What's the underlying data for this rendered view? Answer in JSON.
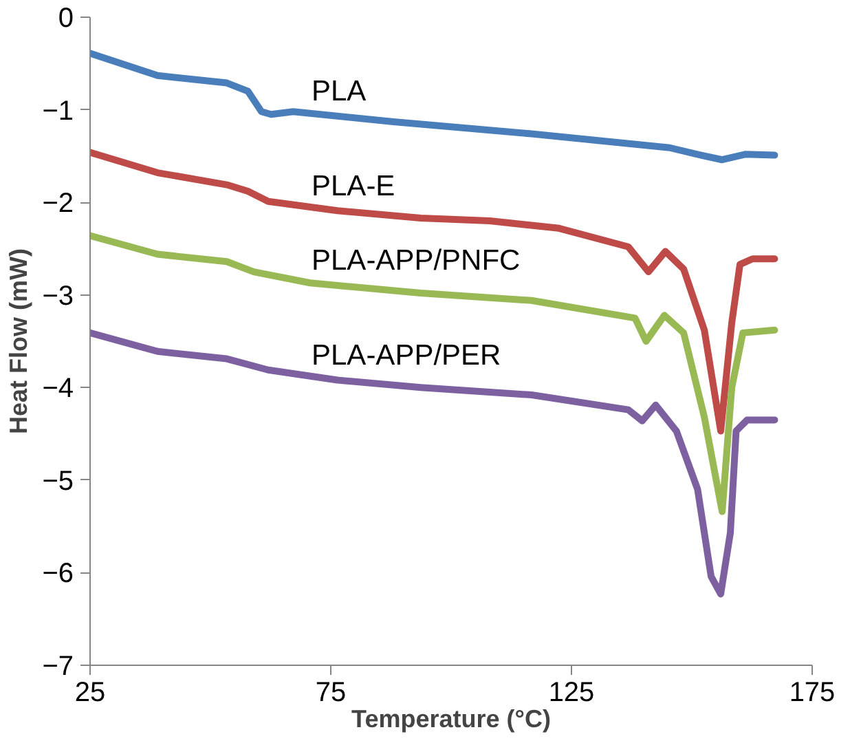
{
  "chart_data": {
    "type": "line",
    "xlabel": "Temperature (°C)",
    "ylabel": "Heat Flow (mW)",
    "xlim": [
      25,
      175
    ],
    "xticks": [
      25,
      75,
      125,
      175
    ],
    "ylim": [
      -7,
      0
    ],
    "yticks": [
      -7,
      -6,
      -5,
      -4,
      -3,
      -2,
      -1,
      0
    ],
    "grid": false,
    "marker": "none",
    "line_style": "solid",
    "series": [
      {
        "name": "PLA",
        "color": "#4a7ebb",
        "x": [
          25,
          39,
          53.4,
          57.8,
          60.6,
          62.6,
          67.2,
          88,
          116.7,
          145.4,
          151,
          156.3,
          161.2,
          167.2
        ],
        "values": [
          -0.39,
          -0.63,
          -0.71,
          -0.8,
          -1.02,
          -1.05,
          -1.02,
          -1.13,
          -1.26,
          -1.41,
          -1.48,
          -1.54,
          -1.48,
          -1.49
        ]
      },
      {
        "name": "PLA-E",
        "color": "#be4b48",
        "x": [
          25,
          39,
          53.4,
          57.8,
          62,
          76.4,
          93.7,
          108,
          122.4,
          136.8,
          141,
          144.5,
          148.3,
          152.6,
          156,
          158.3,
          160,
          162.6,
          167.2
        ],
        "values": [
          -1.46,
          -1.68,
          -1.81,
          -1.88,
          -1.99,
          -2.09,
          -2.17,
          -2.2,
          -2.28,
          -2.48,
          -2.75,
          -2.53,
          -2.72,
          -3.38,
          -4.47,
          -3.3,
          -2.67,
          -2.61,
          -2.61
        ]
      },
      {
        "name": "PLA-APP/PNFC",
        "color": "#98b954",
        "x": [
          25,
          39,
          53.4,
          59,
          70.7,
          93.7,
          116.7,
          138.2,
          140.5,
          144.3,
          148.3,
          152.6,
          156.3,
          158.3,
          160.6,
          167.2
        ],
        "values": [
          -2.36,
          -2.56,
          -2.64,
          -2.75,
          -2.87,
          -2.98,
          -3.06,
          -3.25,
          -3.5,
          -3.22,
          -3.41,
          -4.32,
          -5.34,
          -4.0,
          -3.41,
          -3.38
        ]
      },
      {
        "name": "PLA-APP/PER",
        "color": "#7d60a0",
        "x": [
          25,
          39,
          53.4,
          62,
          76.4,
          93.7,
          116.7,
          136.8,
          139.7,
          142.5,
          146.8,
          151.2,
          154,
          156,
          158,
          159.2,
          161.5,
          167.2
        ],
        "values": [
          -3.41,
          -3.61,
          -3.69,
          -3.81,
          -3.92,
          -4.0,
          -4.08,
          -4.24,
          -4.36,
          -4.19,
          -4.47,
          -5.1,
          -6.04,
          -6.23,
          -5.57,
          -4.47,
          -4.35,
          -4.35
        ]
      }
    ]
  }
}
